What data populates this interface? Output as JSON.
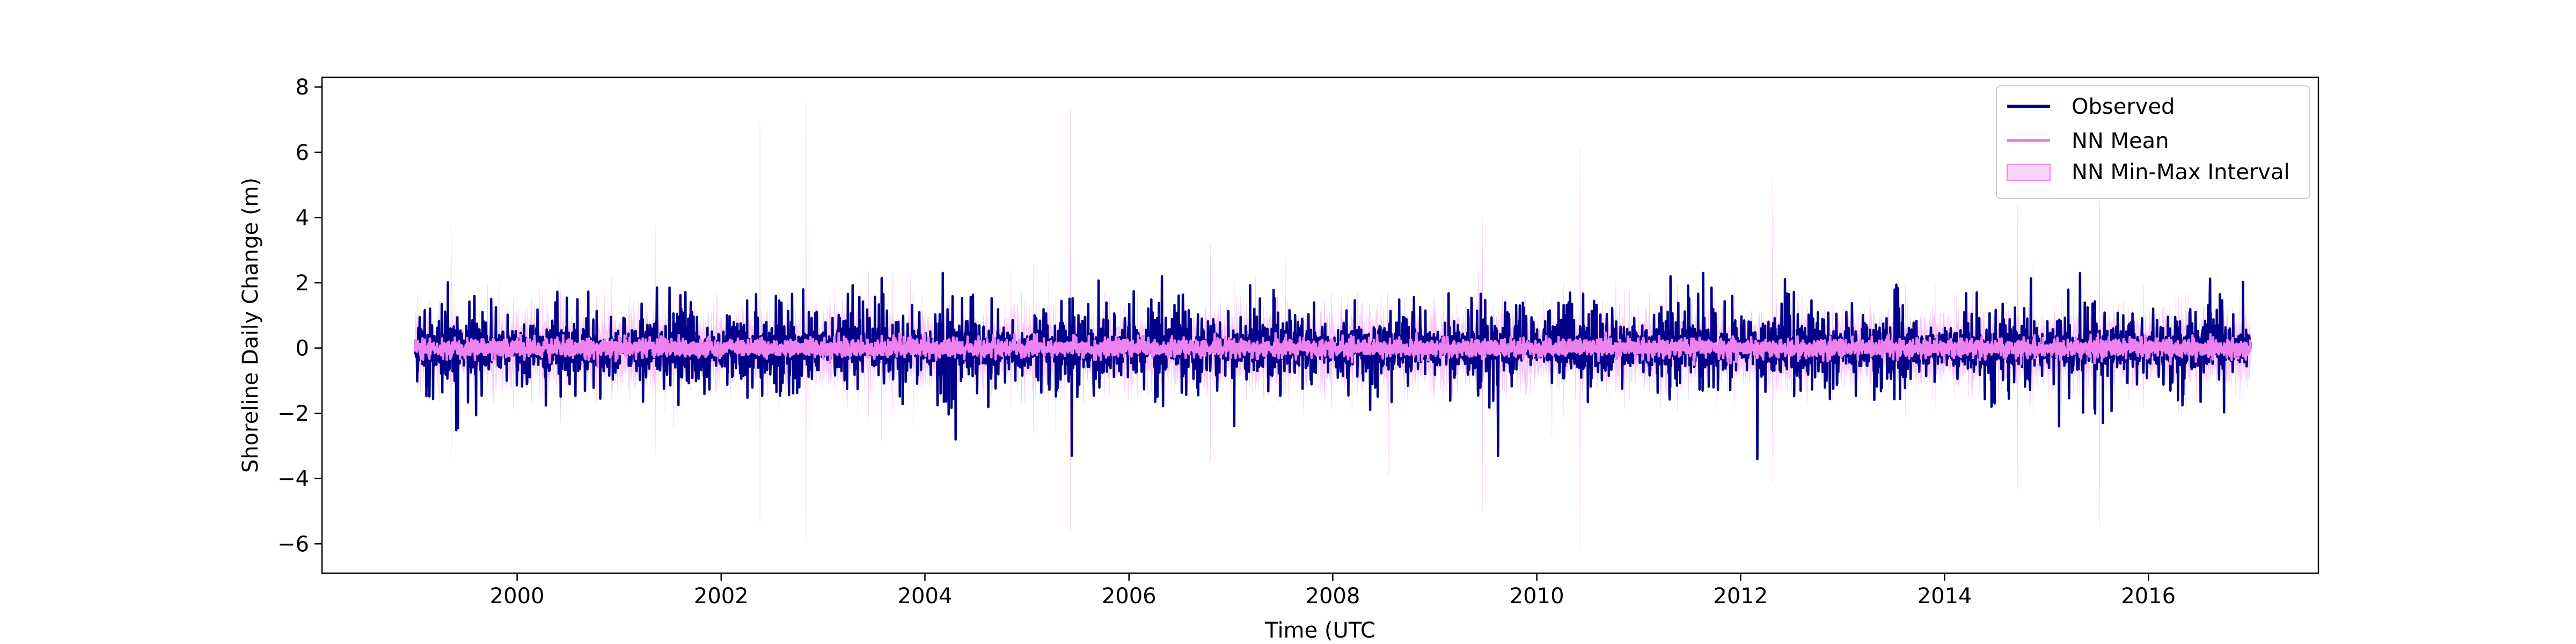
{
  "chart_data": {
    "type": "line",
    "title": "",
    "xlabel": "Time (UTC",
    "ylabel": "Shoreline Daily Change (m)",
    "xlim": [
      "1998-02-01",
      "2017-09-01"
    ],
    "ylim": [
      -6.9,
      8.3
    ],
    "x_ticks": [
      "2000",
      "2002",
      "2004",
      "2006",
      "2008",
      "2010",
      "2012",
      "2014",
      "2016"
    ],
    "y_ticks": [
      "−6",
      "−4",
      "−2",
      "0",
      "2",
      "4",
      "6",
      "8"
    ],
    "y_tick_values": [
      -6,
      -4,
      -2,
      0,
      2,
      4,
      6,
      8
    ],
    "grid": false,
    "legend_position": "top-right",
    "date_range": [
      "1999-01-01",
      "2017-01-01"
    ],
    "series": [
      {
        "name": "Observed",
        "kind": "line",
        "color": "#00008b"
      },
      {
        "name": "NN Mean",
        "kind": "line",
        "color": "#ee82ee"
      },
      {
        "name": "NN Min-Max Interval",
        "kind": "band",
        "color": "#ee82ee",
        "opacity": 0.35
      }
    ],
    "notable_spikes": {
      "interval_upper": [
        {
          "date": "1999-05-10",
          "value": 3.8
        },
        {
          "date": "2001-05-10",
          "value": 3.8
        },
        {
          "date": "2002-05-20",
          "value": 6.9
        },
        {
          "date": "2002-11-01",
          "value": 7.5
        },
        {
          "date": "2005-06-05",
          "value": 7.3
        },
        {
          "date": "2006-10-20",
          "value": 3.2
        },
        {
          "date": "2007-07-15",
          "value": 2.8
        },
        {
          "date": "2009-06-20",
          "value": 4.0
        },
        {
          "date": "2010-06-05",
          "value": 6.1
        },
        {
          "date": "2012-04-25",
          "value": 5.2
        },
        {
          "date": "2014-09-20",
          "value": 4.4
        },
        {
          "date": "2015-07-10",
          "value": 5.5
        }
      ],
      "interval_lower": [
        {
          "date": "1999-05-10",
          "value": -3.4
        },
        {
          "date": "2001-05-10",
          "value": -3.3
        },
        {
          "date": "2002-05-20",
          "value": -5.3
        },
        {
          "date": "2002-11-01",
          "value": -5.9
        },
        {
          "date": "2005-06-05",
          "value": -5.6
        },
        {
          "date": "2006-10-20",
          "value": -3.5
        },
        {
          "date": "2008-07-20",
          "value": -3.9
        },
        {
          "date": "2009-06-20",
          "value": -5.0
        },
        {
          "date": "2010-06-05",
          "value": -6.2
        },
        {
          "date": "2012-04-25",
          "value": -4.2
        },
        {
          "date": "2014-09-20",
          "value": -4.3
        },
        {
          "date": "2015-07-10",
          "value": -5.5
        }
      ],
      "observed": [
        {
          "date": "2004-04-20",
          "value": -2.8
        },
        {
          "date": "2005-06-10",
          "value": -3.3
        },
        {
          "date": "2009-08-15",
          "value": -3.3
        },
        {
          "date": "2012-03-01",
          "value": -3.4
        },
        {
          "date": "2015-02-15",
          "value": -2.4
        },
        {
          "date": "2011-08-20",
          "value": 2.3
        },
        {
          "date": "2015-05-01",
          "value": 2.3
        },
        {
          "date": "2004-03-05",
          "value": 2.3
        }
      ]
    }
  }
}
